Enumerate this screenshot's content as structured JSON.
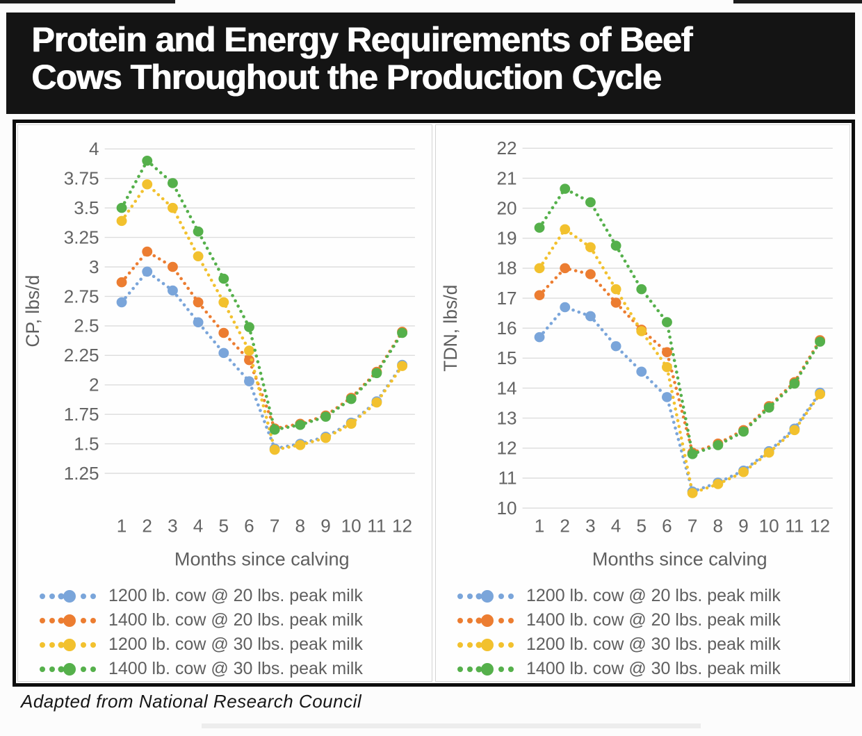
{
  "page": {
    "title_line1": "Protein and Energy Requirements of Beef",
    "title_line2": "Cows Throughout the Production Cycle",
    "footer": "Adapted from National Research Council"
  },
  "colors": {
    "banner_bg": "#141414",
    "banner_text": "#ffffff",
    "axis_text": "#646464",
    "gridline": "#dcdcdc",
    "blue": "#7AA5DA",
    "orange": "#EC7D31",
    "yellow": "#F2C12E",
    "green": "#55B04B"
  },
  "chart_data": [
    {
      "type": "line",
      "title": "",
      "ylabel": "CP, lbs/d",
      "xlabel": "Months since calving",
      "grid": true,
      "legend_position": "bottom",
      "line_style": "dotted",
      "marker": "circle",
      "x": [
        1,
        2,
        3,
        4,
        5,
        6,
        7,
        8,
        9,
        10,
        11,
        12
      ],
      "x_tick_labels": [
        "1",
        "2",
        "3",
        "4",
        "5",
        "6",
        "7",
        "8",
        "9",
        "10",
        "11",
        "12"
      ],
      "ylim": [
        1.25,
        4
      ],
      "ytick_values": [
        4,
        3.75,
        3.5,
        3.25,
        3,
        2.75,
        2.5,
        2.25,
        2,
        1.75,
        1.5,
        1.25
      ],
      "ytick_labels": [
        "4",
        "3.75",
        "3.5",
        "3.25",
        "3",
        "2.75",
        "2.5",
        "2.25",
        "2",
        "1.75",
        "1.5",
        "1.25"
      ],
      "series": [
        {
          "name": "1200 lb. cow @ 20 lbs. peak milk",
          "color": "#7AA5DA",
          "values": [
            2.7,
            2.96,
            2.8,
            2.53,
            2.27,
            2.03,
            1.46,
            1.5,
            1.56,
            1.68,
            1.86,
            2.17
          ]
        },
        {
          "name": "1400 lb. cow @ 20 lbs. peak milk",
          "color": "#EC7D31",
          "values": [
            2.87,
            3.13,
            3.0,
            2.7,
            2.44,
            2.21,
            1.63,
            1.67,
            1.74,
            1.89,
            2.11,
            2.45
          ]
        },
        {
          "name": "1200 lb. cow @ 30 lbs. peak milk",
          "color": "#F2C12E",
          "values": [
            3.39,
            3.7,
            3.5,
            3.09,
            2.7,
            2.29,
            1.45,
            1.49,
            1.55,
            1.67,
            1.85,
            2.16
          ]
        },
        {
          "name": "1400 lb. cow @ 30 lbs. peak milk",
          "color": "#55B04B",
          "values": [
            3.5,
            3.9,
            3.71,
            3.3,
            2.9,
            2.49,
            1.62,
            1.66,
            1.73,
            1.88,
            2.1,
            2.44
          ]
        }
      ]
    },
    {
      "type": "line",
      "title": "",
      "ylabel": "TDN, lbs/d",
      "xlabel": "Months since calving",
      "grid": true,
      "legend_position": "bottom",
      "line_style": "dotted",
      "marker": "circle",
      "x": [
        1,
        2,
        3,
        4,
        5,
        6,
        7,
        8,
        9,
        10,
        11,
        12
      ],
      "x_tick_labels": [
        "1",
        "2",
        "3",
        "4",
        "5",
        "6",
        "7",
        "8",
        "9",
        "10",
        "11",
        "12"
      ],
      "ylim": [
        10,
        22
      ],
      "ytick_values": [
        22,
        21,
        20,
        19,
        18,
        17,
        16,
        15,
        14,
        13,
        12,
        11,
        10
      ],
      "ytick_labels": [
        "22",
        "21",
        "20",
        "19",
        "18",
        "17",
        "16",
        "15",
        "14",
        "13",
        "12",
        "11",
        "10"
      ],
      "series": [
        {
          "name": "1200 lb. cow @ 20 lbs. peak milk",
          "color": "#7AA5DA",
          "values": [
            15.7,
            16.7,
            16.4,
            15.4,
            14.55,
            13.7,
            10.55,
            10.85,
            11.25,
            11.9,
            12.65,
            13.85
          ]
        },
        {
          "name": "1400 lb. cow @ 20 lbs. peak milk",
          "color": "#EC7D31",
          "values": [
            17.1,
            18.0,
            17.8,
            16.85,
            15.95,
            15.2,
            11.85,
            12.15,
            12.6,
            13.4,
            14.2,
            15.6
          ]
        },
        {
          "name": "1200 lb. cow @ 30 lbs. peak milk",
          "color": "#F2C12E",
          "values": [
            18.0,
            19.3,
            18.7,
            17.3,
            15.9,
            14.7,
            10.5,
            10.8,
            11.2,
            11.85,
            12.6,
            13.8
          ]
        },
        {
          "name": "1400 lb. cow @ 30 lbs. peak milk",
          "color": "#55B04B",
          "values": [
            19.35,
            20.65,
            20.2,
            18.75,
            17.3,
            16.2,
            11.8,
            12.1,
            12.55,
            13.35,
            14.15,
            15.55
          ]
        }
      ]
    }
  ]
}
